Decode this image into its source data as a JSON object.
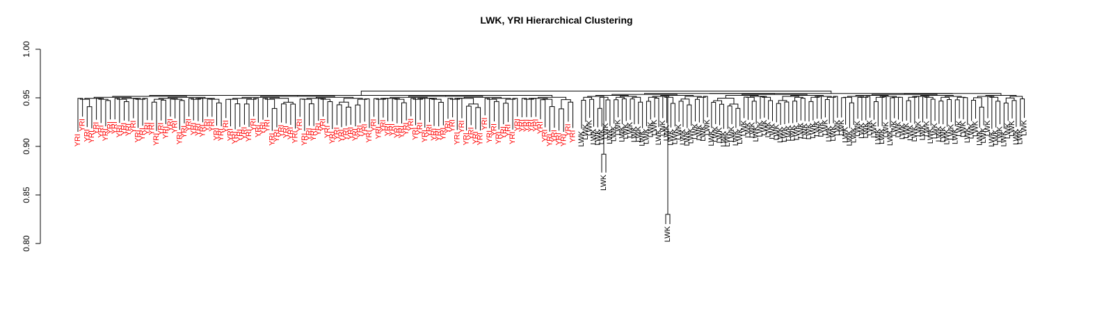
{
  "chart_data": {
    "type": "dendrogram",
    "title": "LWK, YRI Hierarchical Clustering",
    "xlabel": "",
    "ylabel": "",
    "ylim": [
      0.8,
      1.0
    ],
    "yticks": [
      "0.80",
      "0.85",
      "0.90",
      "0.95",
      "1.00"
    ],
    "grid": false,
    "root_height": 0.957,
    "groups": [
      {
        "label": "YRI",
        "color": "#ff0000",
        "leaf_count": 108,
        "subtree_height": 0.9535,
        "leaf_heights_range": [
          0.915,
          0.932
        ],
        "merge_heights_range": [
          0.945,
          0.953
        ]
      },
      {
        "label": "LWK",
        "color": "#000000",
        "leaf_count": 110,
        "subtree_height": 0.9555,
        "leaf_heights_range": [
          0.86,
          0.93
        ],
        "outliers": [
          {
            "position": "left",
            "leaf_height": 0.873,
            "merge_height": 0.892
          },
          {
            "position": "center",
            "leaf_height": 0.82,
            "merge_height": 0.95
          }
        ]
      }
    ]
  }
}
